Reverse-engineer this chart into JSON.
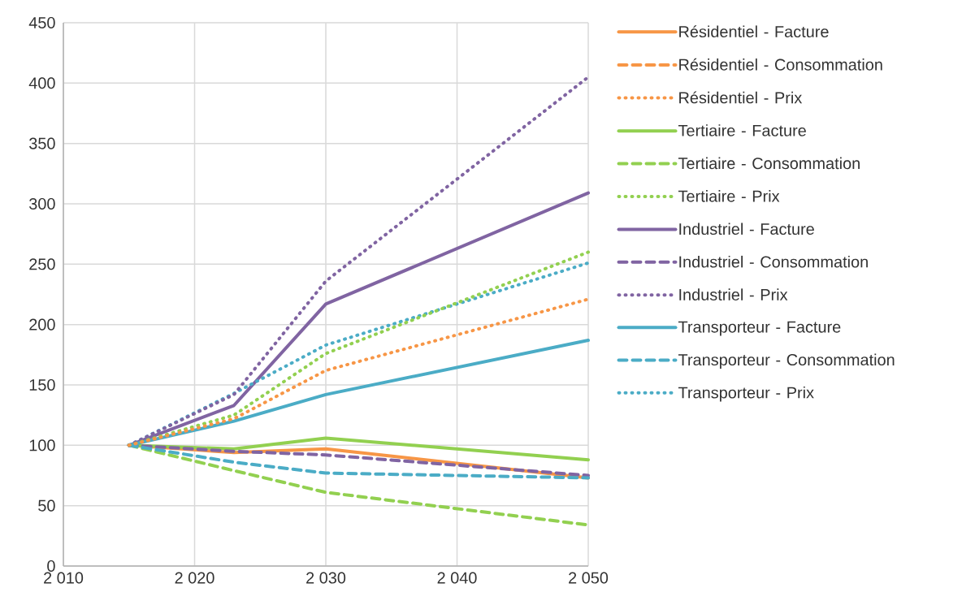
{
  "chart_data": {
    "type": "line",
    "x": [
      2015,
      2023,
      2030,
      2050
    ],
    "series": [
      {
        "name": "Résidentiel - Facture",
        "color": "#f79646",
        "line_style": "solid",
        "values": [
          100,
          94,
          97,
          73
        ]
      },
      {
        "name": "Résidentiel - Consommation",
        "color": "#f79646",
        "line_style": "dashed",
        "values": [
          null,
          null,
          null,
          null
        ]
      },
      {
        "name": "Résidentiel - Prix",
        "color": "#f79646",
        "line_style": "dotted",
        "values": [
          100,
          122,
          162,
          221
        ]
      },
      {
        "name": "Tertiaire - Facture",
        "color": "#92d050",
        "line_style": "solid",
        "values": [
          100,
          97,
          106,
          88
        ]
      },
      {
        "name": "Tertiaire - Consommation",
        "color": "#92d050",
        "line_style": "dashed",
        "values": [
          100,
          79,
          61,
          34
        ]
      },
      {
        "name": "Tertiaire - Prix",
        "color": "#92d050",
        "line_style": "dotted",
        "values": [
          100,
          125,
          176,
          260
        ]
      },
      {
        "name": "Industriel - Facture",
        "color": "#8064a2",
        "line_style": "solid",
        "values": [
          100,
          133,
          217,
          309
        ]
      },
      {
        "name": "Industriel - Consommation",
        "color": "#8064a2",
        "line_style": "dashed",
        "values": [
          100,
          95,
          92,
          75
        ]
      },
      {
        "name": "Industriel - Prix",
        "color": "#8064a2",
        "line_style": "dotted",
        "values": [
          100,
          142,
          236,
          405
        ]
      },
      {
        "name": "Transporteur - Facture",
        "color": "#4bacc6",
        "line_style": "solid",
        "values": [
          100,
          120,
          142,
          187
        ]
      },
      {
        "name": "Transporteur - Consommation",
        "color": "#4bacc6",
        "line_style": "dashed",
        "values": [
          100,
          86,
          77,
          73
        ]
      },
      {
        "name": "Transporteur - Prix",
        "color": "#4bacc6",
        "line_style": "dotted",
        "values": [
          100,
          143,
          183,
          251
        ]
      }
    ],
    "xlim": [
      2010,
      2050
    ],
    "xticks": [
      {
        "value": 2010,
        "label": "2 010"
      },
      {
        "value": 2020,
        "label": "2 020"
      },
      {
        "value": 2030,
        "label": "2 030"
      },
      {
        "value": 2040,
        "label": "2 040"
      },
      {
        "value": 2050,
        "label": "2 050"
      }
    ],
    "ylim": [
      0,
      450
    ],
    "yticks": [
      0,
      50,
      100,
      150,
      200,
      250,
      300,
      350,
      400,
      450
    ],
    "grid": true,
    "legend": "right",
    "marker": "none"
  }
}
